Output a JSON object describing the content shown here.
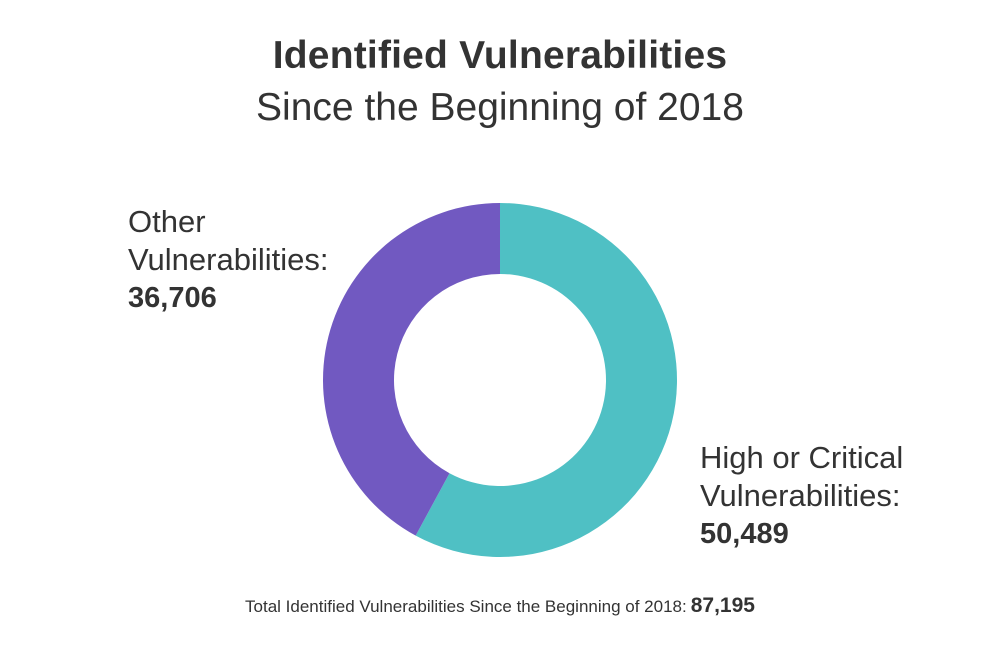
{
  "chart_data": {
    "type": "pie",
    "title": "Identified Vulnerabilities",
    "subtitle": "Since the Beginning of 2018",
    "donut": true,
    "slices": [
      {
        "name": "High or Critical\nVulnerabilities:",
        "value": 50489,
        "display_value": "50,489",
        "color": "#4fc0c4"
      },
      {
        "name": "Other\nVulnerabilities:",
        "value": 36706,
        "display_value": "36,706",
        "color": "#7159c1"
      }
    ],
    "total_label": "Total Identified Vulnerabilities Since the Beginning of 2018:",
    "total_value": "87,195"
  }
}
